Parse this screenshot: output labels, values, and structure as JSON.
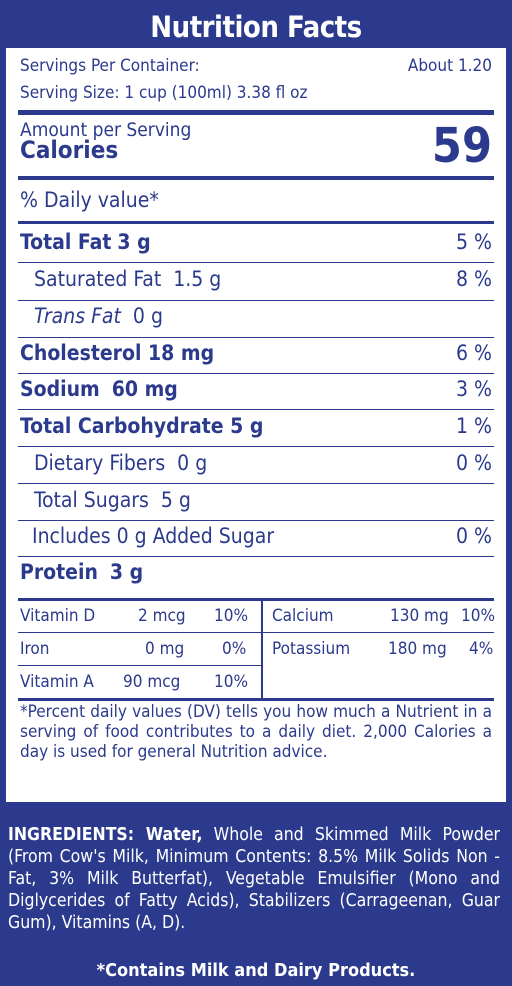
{
  "title": "Nutrition Facts",
  "servings": {
    "label": "Servings Per Container:",
    "value": "About 1.20"
  },
  "serving_size": "Serving Size: 1 cup (100ml) 3.38 fl oz",
  "amount_per_serving": "Amount per Serving",
  "calories_label": "Calories",
  "calories_value": "59",
  "daily_value_header": "% Daily value*",
  "nutrients": [
    {
      "name": "Total Fat",
      "amount": "3 g",
      "dv": "5 %"
    },
    {
      "name": "Saturated Fat",
      "amount": "1.5 g",
      "dv": "8 %"
    },
    {
      "name": "Trans Fat",
      "amount": "0 g",
      "dv": ""
    },
    {
      "name": "Cholesterol 18 mg",
      "amount": "",
      "dv": "6 %"
    },
    {
      "name": "Sodium",
      "amount": "60 mg",
      "dv": "3 %"
    },
    {
      "name": "Total Carbohydrate 5 g",
      "amount": "",
      "dv": "1 %"
    },
    {
      "name": "Dietary Fibers",
      "amount": "0 g",
      "dv": "0 %"
    },
    {
      "name": "Total Sugars",
      "amount": "5 g",
      "dv": ""
    },
    {
      "name": "Includes 0 g Added Sugar",
      "amount": "",
      "dv": "0 %"
    },
    {
      "name": "Protein",
      "amount": "3 g",
      "dv": ""
    }
  ],
  "vitamins": {
    "vitamin_d": {
      "name": "Vitamin D",
      "amount": "2 mcg",
      "dv": "10%"
    },
    "iron": {
      "name": "Iron",
      "amount": "0 mg",
      "dv": "0%"
    },
    "vitamin_a": {
      "name": "Vitamin A",
      "amount": "90 mcg",
      "dv": "10%"
    },
    "calcium": {
      "name": "Calcium",
      "amount": "130 mg",
      "dv": "10%"
    },
    "potassium": {
      "name": "Potassium",
      "amount": "180 mg",
      "dv": "4%"
    }
  },
  "footnote": "*Percent daily values (DV) tells you how much a Nutrient in a serving of food contributes to a daily diet. 2,000 Calories a day is used for general Nutrition advice.",
  "ingredients_label": "INGREDIENTS: Water,",
  "ingredients_text": "Whole and Skimmed Milk Powder (From Cow's Milk, Minimum Contents: 8.5% Milk Solids Non - Fat, 3% Milk Butterfat), Vegetable Emulsifier (Mono and Diglycerides of Fatty Acids), Stabilizers (Carrageenan, Guar Gum), Vitamins (A, D).",
  "allergen": "*Contains Milk and Dairy Products."
}
